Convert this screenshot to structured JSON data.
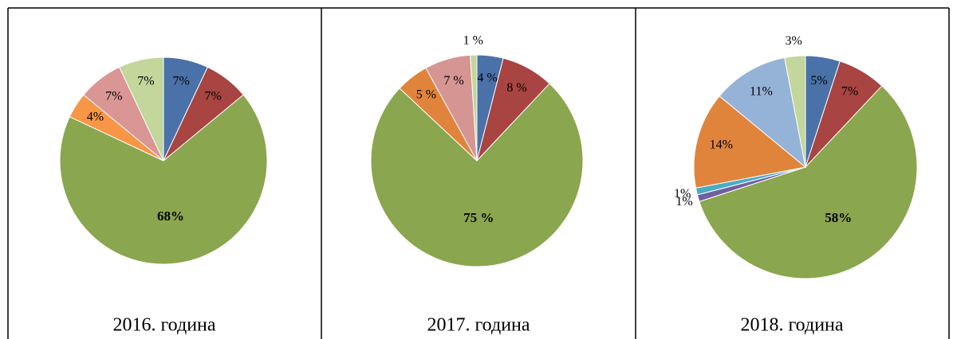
{
  "chart_data": [
    {
      "type": "pie",
      "title": "2016. година",
      "values": [
        7,
        7,
        68,
        4,
        7,
        7
      ],
      "value_labels": [
        "7%",
        "7%",
        "68%",
        "4%",
        "7%",
        "7%"
      ],
      "colors": [
        "#4a72a8",
        "#a84442",
        "#8aa64e",
        "#f79646",
        "#d99694",
        "#c3d69b"
      ]
    },
    {
      "type": "pie",
      "title": "2017. година",
      "values": [
        4,
        8,
        75,
        5,
        7,
        1
      ],
      "value_labels": [
        "4 %",
        "8 %",
        "75 %",
        "5 %",
        "7 %",
        "1 %"
      ],
      "colors": [
        "#4a72a8",
        "#a84442",
        "#8aa64e",
        "#e0843c",
        "#d59593",
        "#c3d69b"
      ]
    },
    {
      "type": "pie",
      "title": "2018. година",
      "values": [
        5,
        7,
        58,
        1,
        1,
        14,
        11,
        3
      ],
      "value_labels": [
        "5%",
        "7%",
        "58%",
        "1%",
        "1%",
        "14%",
        "11%",
        "3%"
      ],
      "colors": [
        "#4a72a8",
        "#a84442",
        "#8aa64e",
        "#7060a0",
        "#4bacc6",
        "#e0843c",
        "#95b3d7",
        "#c3d69b"
      ]
    }
  ]
}
